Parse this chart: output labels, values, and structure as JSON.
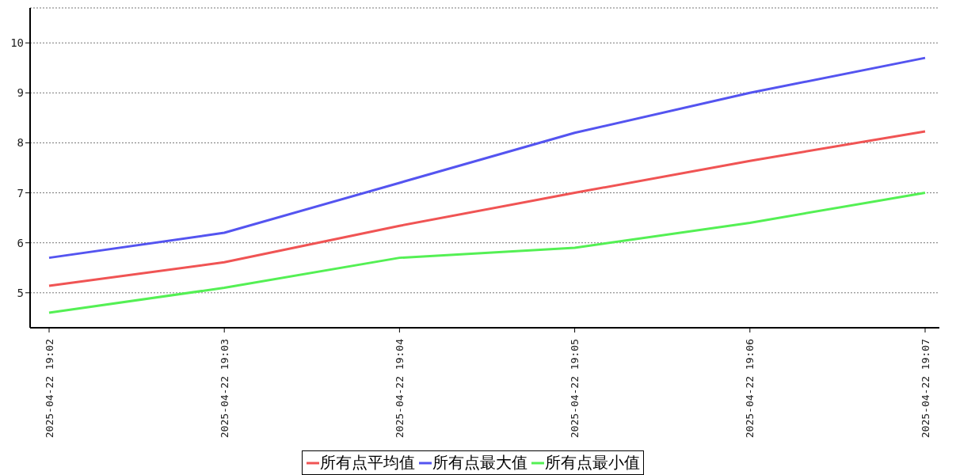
{
  "chart_data": {
    "type": "line",
    "categories": [
      "2025-04-22 19:02",
      "2025-04-22 19:03",
      "2025-04-22 19:04",
      "2025-04-22 19:05",
      "2025-04-22 19:06",
      "2025-04-22 19:07"
    ],
    "series": [
      {
        "name": "所有点平均值",
        "color": "#f05454",
        "values": [
          5.14,
          5.61,
          6.34,
          7.0,
          7.64,
          8.23
        ]
      },
      {
        "name": "所有点最大值",
        "color": "#5454f0",
        "values": [
          5.7,
          6.2,
          7.2,
          8.2,
          9.0,
          9.7
        ]
      },
      {
        "name": "所有点最小值",
        "color": "#54f054",
        "values": [
          4.6,
          5.1,
          5.7,
          5.9,
          6.4,
          7.0
        ]
      }
    ],
    "ylim": [
      4.3,
      10.7
    ],
    "yticks": [
      5,
      6,
      7,
      8,
      9,
      10
    ],
    "grid": "y",
    "legend": "bottom",
    "marker": "none",
    "line_style": "solid"
  }
}
